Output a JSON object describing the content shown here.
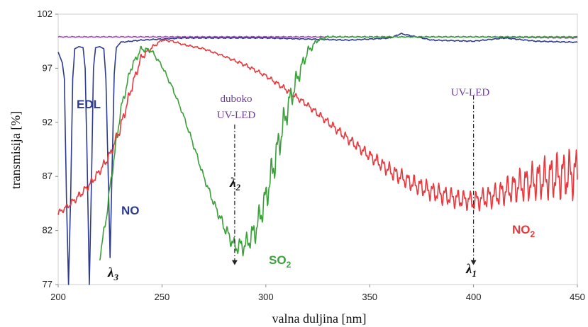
{
  "chart_data": {
    "type": "line",
    "xlabel": "valna duljina [nm]",
    "ylabel": "transmisija [%]",
    "xlim": [
      200,
      450
    ],
    "ylim": [
      77,
      102
    ],
    "xticks": [
      200,
      250,
      300,
      350,
      400,
      450
    ],
    "yticks": [
      77,
      82,
      87,
      92,
      97,
      102
    ],
    "grid": false,
    "series": [
      {
        "name": "NO2",
        "color": "#e8383d",
        "x": [
          200,
          205,
          210,
          215,
          220,
          225,
          230,
          235,
          240,
          245,
          250,
          255,
          260,
          270,
          280,
          290,
          300,
          310,
          320,
          330,
          340,
          350,
          360,
          370,
          380,
          390,
          400,
          410,
          420,
          430,
          440,
          450
        ],
        "y": [
          83.6,
          84.3,
          85.2,
          86.2,
          87.5,
          89.0,
          91.5,
          95.0,
          98.0,
          98.9,
          99.6,
          99.5,
          99.2,
          98.8,
          98.1,
          97.3,
          96.3,
          95.0,
          93.6,
          92.0,
          90.4,
          88.9,
          87.5,
          86.4,
          85.6,
          85.0,
          84.7,
          85.2,
          86.0,
          86.6,
          87.0,
          87.3
        ],
        "noise": [
          0.3,
          0.3,
          0.4,
          0.4,
          0.4,
          0.5,
          0.6,
          0.5,
          0.4,
          0.2,
          0.1,
          0.1,
          0.1,
          0.1,
          0.1,
          0.2,
          0.2,
          0.3,
          0.3,
          0.4,
          0.5,
          0.6,
          0.8,
          0.9,
          1.0,
          1.0,
          1.0,
          1.2,
          1.6,
          2.0,
          2.4,
          2.6
        ]
      },
      {
        "name": "SO2",
        "color": "#3aa13a",
        "x": [
          220,
          223,
          225,
          230,
          235,
          240,
          245,
          250,
          255,
          260,
          265,
          270,
          275,
          280,
          285,
          290,
          295,
          300,
          305,
          310,
          315,
          320,
          325,
          330,
          340,
          350,
          360,
          370,
          380,
          390,
          400,
          410,
          420,
          430,
          440,
          450
        ],
        "y": [
          79.5,
          83.0,
          86.0,
          93.0,
          97.0,
          98.8,
          98.6,
          97.2,
          95.2,
          92.8,
          90.0,
          87.0,
          84.5,
          82.3,
          80.5,
          80.6,
          82.0,
          85.0,
          89.0,
          93.0,
          96.0,
          98.5,
          99.6,
          99.9,
          99.9,
          99.9,
          99.9,
          99.9,
          99.9,
          99.9,
          99.9,
          99.9,
          99.9,
          99.9,
          99.9,
          99.9
        ],
        "noise": [
          0.4,
          0.5,
          0.5,
          0.5,
          0.4,
          0.3,
          0.2,
          0.2,
          0.2,
          0.2,
          0.3,
          0.3,
          0.4,
          0.6,
          0.8,
          1.0,
          1.3,
          1.6,
          1.8,
          1.5,
          1.0,
          0.5,
          0.2,
          0.1,
          0.05,
          0.05,
          0.05,
          0.05,
          0.05,
          0.05,
          0.05,
          0.05,
          0.05,
          0.05,
          0.05,
          0.05
        ]
      },
      {
        "name": "NO",
        "color": "#2c3a8f",
        "x": [
          200,
          202,
          203,
          204,
          205,
          206,
          207,
          208,
          210,
          212,
          213,
          214,
          215,
          216,
          217,
          218,
          220,
          222,
          223,
          224,
          225,
          226,
          227,
          228,
          230,
          240,
          260,
          300,
          340,
          360,
          365,
          380,
          400,
          415,
          430,
          450
        ],
        "y": [
          98.5,
          97.5,
          96.0,
          85.0,
          77.0,
          85.0,
          96.0,
          98.8,
          99.0,
          98.9,
          97.0,
          88.0,
          77.0,
          86.0,
          97.0,
          98.9,
          99.0,
          98.8,
          96.0,
          88.0,
          79.5,
          88.0,
          96.5,
          98.9,
          99.4,
          99.6,
          99.8,
          99.8,
          99.6,
          99.8,
          100.2,
          99.6,
          99.5,
          99.8,
          99.5,
          99.4
        ],
        "noise": [
          0,
          0,
          0,
          0,
          0,
          0,
          0,
          0,
          0,
          0,
          0,
          0,
          0,
          0,
          0,
          0,
          0,
          0,
          0,
          0,
          0,
          0,
          0,
          0,
          0.05,
          0.05,
          0.05,
          0.05,
          0.05,
          0.05,
          0.05,
          0.05,
          0.05,
          0.05,
          0.05,
          0.05
        ]
      },
      {
        "name": "EDL",
        "color": "#a44bc2",
        "x": [
          200,
          250,
          300,
          350,
          400,
          450
        ],
        "y": [
          99.9,
          99.9,
          99.9,
          99.9,
          99.9,
          99.8
        ],
        "noise": [
          0.05,
          0.05,
          0.05,
          0.05,
          0.05,
          0.05
        ]
      }
    ],
    "labels": {
      "edl": "EDL",
      "no": "NO",
      "so2_main": "SO",
      "so2_sub": "2",
      "no2_main": "NO",
      "no2_sub": "2",
      "duboko_line1": "duboko",
      "duboko_line2": "UV-LED",
      "uvled": "UV-LED",
      "lambda_symbol": "λ",
      "lambda1_sub": "1",
      "lambda2_sub": "2",
      "lambda3_sub": "3"
    },
    "markers": [
      {
        "name": "lambda1",
        "x": 400,
        "arrow_from_y": 94.5,
        "arrow_to_y": 78.8
      },
      {
        "name": "lambda2",
        "x": 285,
        "arrow_from_y": 91.8,
        "arrow_to_y": 78.8
      }
    ],
    "annotation_colors": {
      "edl": "#2c3a8f",
      "no": "#2c3a8f",
      "so2": "#3aa13a",
      "no2": "#e8383d",
      "led_text": "#6a3d9a"
    }
  }
}
